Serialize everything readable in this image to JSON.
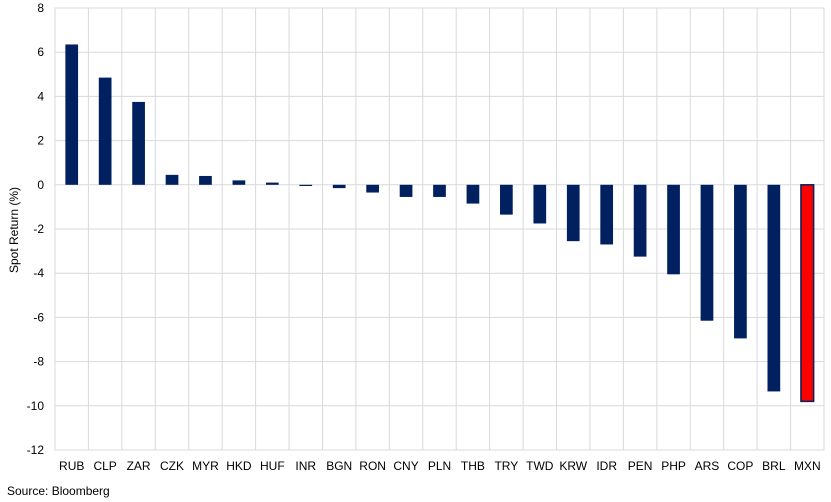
{
  "chart_data": {
    "type": "bar",
    "ylabel": "Spot Return (%)",
    "ylim": [
      -12,
      8
    ],
    "yticks": [
      8,
      6,
      4,
      2,
      0,
      -2,
      -4,
      -6,
      -8,
      -10,
      -12
    ],
    "grid": true,
    "categories": [
      "RUB",
      "CLP",
      "ZAR",
      "CZK",
      "MYR",
      "HKD",
      "HUF",
      "INR",
      "BGN",
      "RON",
      "CNY",
      "PLN",
      "THB",
      "TRY",
      "TWD",
      "KRW",
      "IDR",
      "PEN",
      "PHP",
      "ARS",
      "COP",
      "BRL",
      "MXN"
    ],
    "values": [
      6.35,
      4.85,
      3.75,
      0.45,
      0.4,
      0.2,
      0.1,
      -0.05,
      -0.15,
      -0.35,
      -0.55,
      -0.55,
      -0.85,
      -1.35,
      -1.75,
      -2.55,
      -2.7,
      -3.25,
      -4.05,
      -6.15,
      -6.95,
      -9.35,
      -9.8
    ],
    "colors": {
      "default": "#002060",
      "highlight": "#FF0000",
      "highlight_category": "MXN",
      "grid": "#d9d9d9"
    }
  },
  "source": "Source: Bloomberg"
}
